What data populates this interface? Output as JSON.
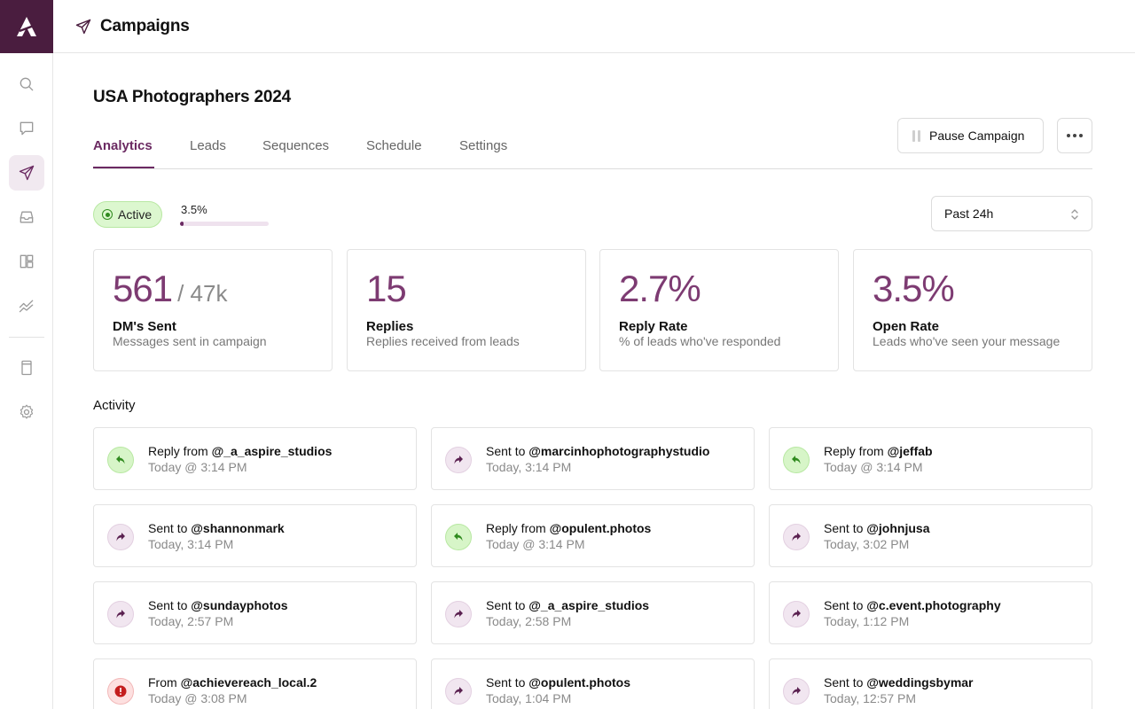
{
  "header": {
    "title": "Campaigns"
  },
  "campaign": {
    "title": "USA Photographers 2024",
    "tabs": [
      {
        "label": "Analytics"
      },
      {
        "label": "Leads"
      },
      {
        "label": "Sequences"
      },
      {
        "label": "Schedule"
      },
      {
        "label": "Settings"
      }
    ],
    "active_tab": "Analytics",
    "pause_label": "Pause Campaign",
    "status": "Active",
    "progress_label": "3.5%",
    "progress_percent": 3.5,
    "time_range": "Past 24h"
  },
  "stats": [
    {
      "value": "561",
      "suffix": "/ 47k",
      "label": "DM's Sent",
      "sub": "Messages sent in campaign"
    },
    {
      "value": "15",
      "suffix": "",
      "label": "Replies",
      "sub": "Replies received from leads"
    },
    {
      "value": "2.7%",
      "suffix": "",
      "label": "Reply Rate",
      "sub": "% of leads who've responded"
    },
    {
      "value": "3.5%",
      "suffix": "",
      "label": "Open Rate",
      "sub": "Leads who've seen your message"
    }
  ],
  "activity": {
    "heading": "Activity",
    "items": [
      {
        "type": "reply",
        "prefix": "Reply from",
        "handle": "@_a_aspire_studios",
        "time": "Today @ 3:14 PM"
      },
      {
        "type": "sent",
        "prefix": "Sent to",
        "handle": "@marcinhophotographystudio",
        "time": "Today, 3:14 PM"
      },
      {
        "type": "reply",
        "prefix": "Reply from",
        "handle": "@jeffab",
        "time": "Today @ 3:14 PM"
      },
      {
        "type": "sent",
        "prefix": "Sent to",
        "handle": "@shannonmark",
        "time": "Today, 3:14 PM"
      },
      {
        "type": "reply",
        "prefix": "Reply from",
        "handle": "@opulent.photos",
        "time": "Today @ 3:14 PM"
      },
      {
        "type": "sent",
        "prefix": "Sent to",
        "handle": "@johnjusa",
        "time": "Today, 3:02 PM"
      },
      {
        "type": "sent",
        "prefix": "Sent to",
        "handle": "@sundayphotos",
        "time": "Today, 2:57 PM"
      },
      {
        "type": "sent",
        "prefix": "Sent to",
        "handle": "@_a_aspire_studios",
        "time": "Today, 2:58 PM"
      },
      {
        "type": "sent",
        "prefix": "Sent to",
        "handle": "@c.event.photography",
        "time": "Today, 1:12 PM"
      },
      {
        "type": "error",
        "prefix": "From",
        "handle": "@achievereach_local.2",
        "time": "Today @ 3:08 PM"
      },
      {
        "type": "sent",
        "prefix": "Sent to",
        "handle": "@opulent.photos",
        "time": "Today, 1:04 PM"
      },
      {
        "type": "sent",
        "prefix": "Sent to",
        "handle": "@weddingsbymar",
        "time": "Today, 12:57 PM"
      }
    ]
  },
  "icons": {
    "sidebar": [
      "search-icon",
      "chat-icon",
      "send-icon",
      "inbox-icon",
      "layout-icon",
      "chart-icon",
      "book-icon",
      "gear-icon"
    ],
    "brand_color": "#4a1d3f",
    "accent_color": "#6b2a62"
  }
}
